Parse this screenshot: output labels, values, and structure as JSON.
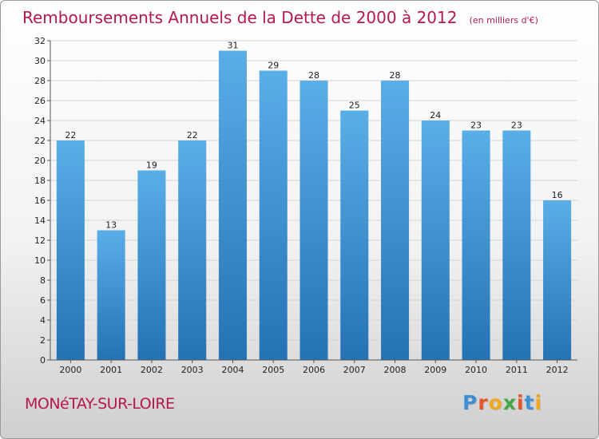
{
  "chart_data": {
    "type": "bar",
    "title": "Remboursements Annuels de la Dette de 2000 à 2012",
    "subtitle": "(en milliers d'€)",
    "categories": [
      "2000",
      "2001",
      "2002",
      "2003",
      "2004",
      "2005",
      "2006",
      "2007",
      "2008",
      "2009",
      "2010",
      "2011",
      "2012"
    ],
    "values": [
      22,
      13,
      19,
      22,
      31,
      29,
      28,
      25,
      28,
      24,
      23,
      23,
      16
    ],
    "ylim": [
      0,
      32
    ],
    "yticks": [
      0,
      2,
      4,
      6,
      8,
      10,
      12,
      14,
      16,
      18,
      20,
      22,
      24,
      26,
      28,
      30,
      32
    ],
    "grid": true,
    "bar_color_top": "#5aaee8",
    "bar_color_bottom": "#2472b4"
  },
  "footer": {
    "commune": "MONéTAY-SUR-LOIRE",
    "logo_letters": [
      "P",
      "r",
      "o",
      "x",
      "i",
      "t",
      "i"
    ],
    "logo_colors": [
      "#3d8fd6",
      "#e8542a",
      "#f2a81d",
      "#44a845",
      "#e8542a",
      "#3d8fd6",
      "#f2a81d"
    ]
  }
}
